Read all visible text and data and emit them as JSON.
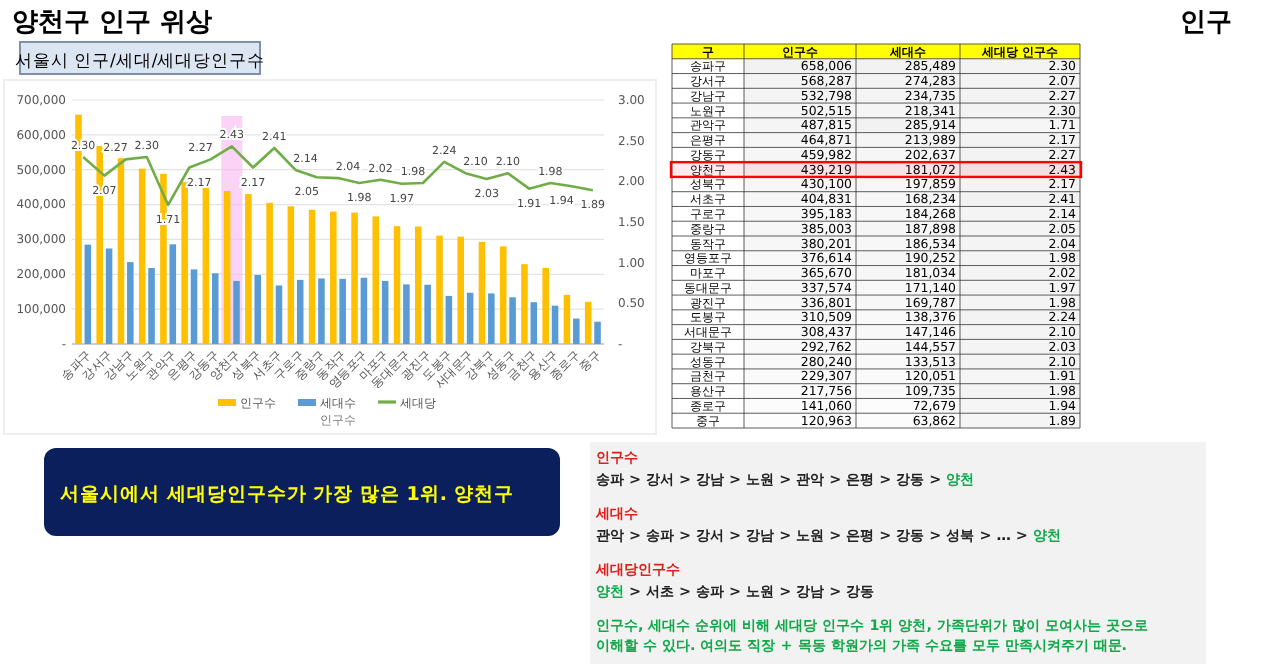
{
  "chart_data": [
    {
      "type": "bar",
      "title": "양천구 인구 위상",
      "subtitle": "서울시 인구/세대/세대당인구수",
      "xlabel": "인구수",
      "categories": [
        "송파구",
        "강서구",
        "강남구",
        "노원구",
        "관악구",
        "은평구",
        "강동구",
        "양천구",
        "성북구",
        "서초구",
        "구로구",
        "중랑구",
        "동작구",
        "영등포구",
        "마포구",
        "동대문구",
        "광진구",
        "도봉구",
        "서대문구",
        "강북구",
        "성동구",
        "금천구",
        "용산구",
        "종로구",
        "중구"
      ],
      "series": [
        {
          "name": "인구수",
          "color": "#ffc000",
          "values": [
            658000,
            568000,
            533000,
            503000,
            488000,
            465000,
            460000,
            439000,
            430000,
            405000,
            395000,
            385000,
            380000,
            377000,
            366000,
            338000,
            337000,
            311000,
            308000,
            293000,
            280000,
            229000,
            218000,
            141000,
            121000
          ]
        },
        {
          "name": "세대수",
          "color": "#5b9bd5",
          "values": [
            285000,
            274000,
            235000,
            218000,
            286000,
            214000,
            203000,
            181000,
            198000,
            168000,
            184000,
            188000,
            187000,
            190000,
            181000,
            171000,
            170000,
            138000,
            147000,
            145000,
            134000,
            120000,
            110000,
            73000,
            64000
          ]
        },
        {
          "name": "세대당",
          "type": "line",
          "axis": "y2",
          "color": "#70ad47",
          "values": [
            2.3,
            2.07,
            2.27,
            2.3,
            1.71,
            2.17,
            2.27,
            2.43,
            2.17,
            2.41,
            2.14,
            2.05,
            2.04,
            1.98,
            2.02,
            1.97,
            1.98,
            2.24,
            2.1,
            2.03,
            2.1,
            1.91,
            1.98,
            1.94,
            1.89
          ],
          "value_labels": [
            "2.30",
            "2.07",
            "2.27",
            "2.30",
            "1.71",
            "2.17",
            "2.27",
            "2.43",
            "2.17",
            "2.41",
            "2.14",
            "2.05",
            "2.04",
            "1.98",
            "2.02",
            "1.97",
            "1.98",
            "2.24",
            "2.10",
            "2.03",
            "2.10",
            "1.91",
            "1.98",
            "1.94",
            "1.89"
          ]
        }
      ],
      "ylim": [
        0,
        700000
      ],
      "yticks": [
        {
          "value": 0,
          "label": "-"
        },
        {
          "value": 100000,
          "label": "100,000"
        },
        {
          "value": 200000,
          "label": "200,000"
        },
        {
          "value": 300000,
          "label": "300,000"
        },
        {
          "value": 400000,
          "label": "400,000"
        },
        {
          "value": 500000,
          "label": "500,000"
        },
        {
          "value": 600000,
          "label": "600,000"
        },
        {
          "value": 700000,
          "label": "700,000"
        }
      ],
      "y2lim": [
        0,
        3
      ],
      "y2ticks": [
        {
          "value": 0,
          "label": "-"
        },
        {
          "value": 0.5,
          "label": "0.50"
        },
        {
          "value": 1,
          "label": "1.00"
        },
        {
          "value": 1.5,
          "label": "1.50"
        },
        {
          "value": 2,
          "label": "2.00"
        },
        {
          "value": 2.5,
          "label": "2.50"
        },
        {
          "value": 3,
          "label": "3.00"
        }
      ],
      "bands": [
        {
          "axis": "x",
          "from": "양천구",
          "to": "양천구",
          "color": "#f7b6f0"
        }
      ],
      "grid": "y",
      "legend": "bottom",
      "marker": "none",
      "line_style": "solid",
      "annotations": [
        "인구",
        "서울시에서 세대당인구수가 가장 많은 1위. 양천구",
        "인구수",
        "송파 > 강서 > 강남 > 노원 > 관악 > 은평 > 강동 > 양천",
        "세대수",
        "관악 > 송파 > 강서 > 강남 > 노원 > 은평 > 강동 > 성북 > … > 양천",
        "세대당인구수",
        "양천 > 서초 > 송파 > 노원 > 강남 > 강동",
        "인구수, 세대수 순위에 비해 세대당 인구수 1위 양천, 가족단위가 많이 모여사는 곳으로 이해할 수 있다. 여의도 직장 + 목동 학원가의 가족 수요를 모두 만족시켜주기 때문."
      ]
    },
    {
      "type": "heatmap",
      "ylabel": "구",
      "categories": [
        "인구수",
        "세대수",
        "세대당 인구수"
      ],
      "y_categories": [
        "송파구",
        "강서구",
        "강남구",
        "노원구",
        "관악구",
        "은평구",
        "강동구",
        "양천구",
        "성북구",
        "서초구",
        "구로구",
        "중랑구",
        "동작구",
        "영등포구",
        "마포구",
        "동대문구",
        "광진구",
        "도봉구",
        "서대문구",
        "강북구",
        "성동구",
        "금천구",
        "용산구",
        "종로구",
        "중구"
      ],
      "cells": [
        [
          658006,
          285489,
          2.3
        ],
        [
          568287,
          274283,
          2.07
        ],
        [
          532798,
          234735,
          2.27
        ],
        [
          502515,
          218341,
          2.3
        ],
        [
          487815,
          285914,
          1.71
        ],
        [
          464871,
          213989,
          2.17
        ],
        [
          459982,
          202637,
          2.27
        ],
        [
          439219,
          181072,
          2.43
        ],
        [
          430100,
          197859,
          2.17
        ],
        [
          404831,
          168234,
          2.41
        ],
        [
          395183,
          184268,
          2.14
        ],
        [
          385003,
          187898,
          2.05
        ],
        [
          380201,
          186534,
          2.04
        ],
        [
          376614,
          190252,
          1.98
        ],
        [
          365670,
          181034,
          2.02
        ],
        [
          337574,
          171140,
          1.97
        ],
        [
          336801,
          169787,
          1.98
        ],
        [
          310509,
          138376,
          2.24
        ],
        [
          308437,
          147146,
          2.1
        ],
        [
          292762,
          144557,
          2.03
        ],
        [
          280240,
          133513,
          2.1
        ],
        [
          229307,
          120051,
          1.91
        ],
        [
          217756,
          109735,
          1.98
        ],
        [
          141060,
          72679,
          1.94
        ],
        [
          120963,
          63862,
          1.89
        ]
      ],
      "cell_labels": [
        [
          "658,006",
          "285,489",
          "2.30"
        ],
        [
          "568,287",
          "274,283",
          "2.07"
        ],
        [
          "532,798",
          "234,735",
          "2.27"
        ],
        [
          "502,515",
          "218,341",
          "2.30"
        ],
        [
          "487,815",
          "285,914",
          "1.71"
        ],
        [
          "464,871",
          "213,989",
          "2.17"
        ],
        [
          "459,982",
          "202,637",
          "2.27"
        ],
        [
          "439,219",
          "181,072",
          "2.43"
        ],
        [
          "430,100",
          "197,859",
          "2.17"
        ],
        [
          "404,831",
          "168,234",
          "2.41"
        ],
        [
          "395,183",
          "184,268",
          "2.14"
        ],
        [
          "385,003",
          "187,898",
          "2.05"
        ],
        [
          "380,201",
          "186,534",
          "2.04"
        ],
        [
          "376,614",
          "190,252",
          "1.98"
        ],
        [
          "365,670",
          "181,034",
          "2.02"
        ],
        [
          "337,574",
          "171,140",
          "1.97"
        ],
        [
          "336,801",
          "169,787",
          "1.98"
        ],
        [
          "310,509",
          "138,376",
          "2.24"
        ],
        [
          "308,437",
          "147,146",
          "2.10"
        ],
        [
          "292,762",
          "144,557",
          "2.03"
        ],
        [
          "280,240",
          "133,513",
          "2.10"
        ],
        [
          "229,307",
          "120,051",
          "1.91"
        ],
        [
          "217,756",
          "109,735",
          "1.98"
        ],
        [
          "141,060",
          "72,679",
          "1.94"
        ],
        [
          "120,963",
          "63,862",
          "1.89"
        ]
      ],
      "bands": [
        {
          "axis": "y",
          "from": "양천구",
          "to": "양천구",
          "color": "#ff0000"
        }
      ]
    }
  ]
}
